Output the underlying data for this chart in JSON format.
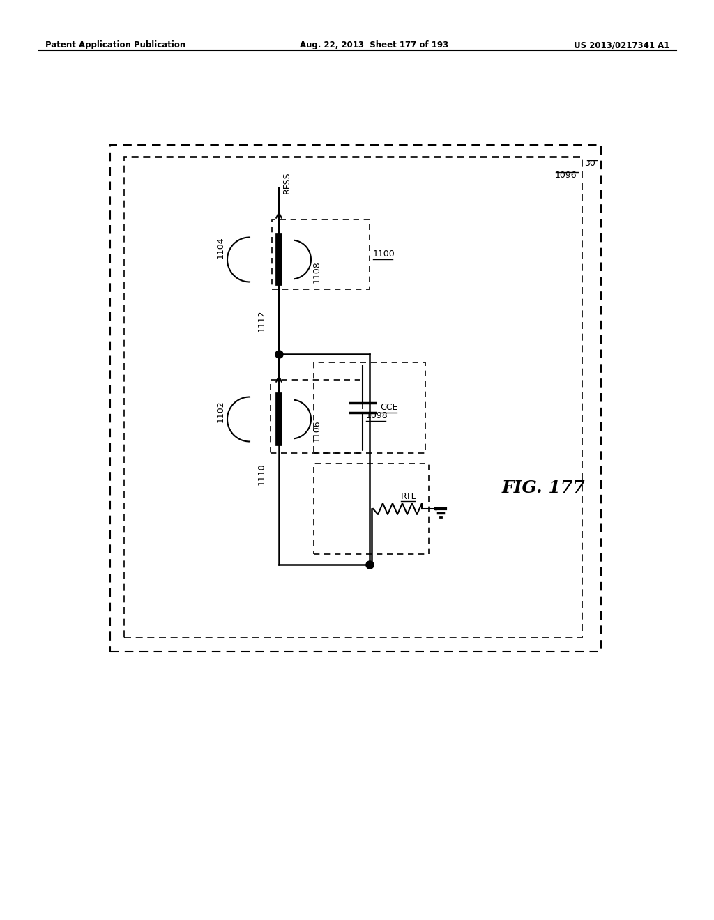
{
  "header_left": "Patent Application Publication",
  "header_mid": "Aug. 22, 2013  Sheet 177 of 193",
  "header_right": "US 2013/0217341 A1",
  "fig_label": "FIG. 177",
  "outer_box_label": "30",
  "inner_box_label": "1096",
  "label_1100": "1100",
  "label_1098": "1098",
  "label_1102": "1102",
  "label_1104": "1104",
  "label_1106": "1106",
  "label_1108": "1108",
  "label_1110": "1110",
  "label_1112": "1112",
  "label_RFSS": "RFSS",
  "label_CCE": "CCE",
  "label_RTE": "RTE",
  "bg_color": "#ffffff",
  "line_color": "#000000"
}
